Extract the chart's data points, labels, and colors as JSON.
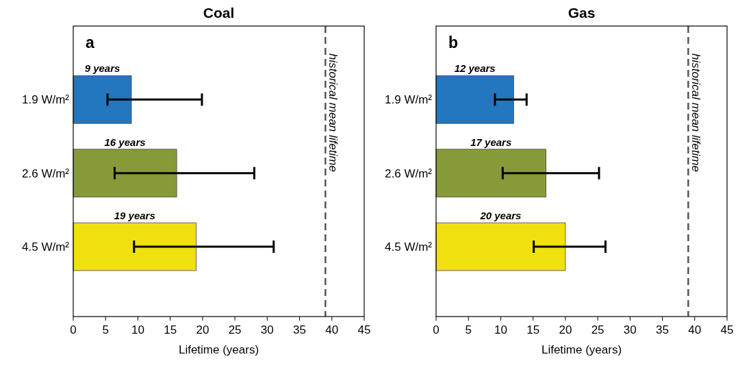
{
  "chart_data": [
    {
      "type": "bar",
      "orientation": "horizontal",
      "title": "Coal",
      "xlabel": "Lifetime (years)",
      "categories": [
        "1.9 W/m²",
        "2.6 W/m²",
        "4.5 W/m²"
      ],
      "values": [
        9,
        16,
        19
      ],
      "colors": [
        "#2277bf",
        "#879a3a",
        "#f0e010"
      ],
      "value_labels": [
        "9 years",
        "16 years",
        "19 years"
      ],
      "errors": [
        [
          5.3,
          19.9
        ],
        [
          6.4,
          28
        ],
        [
          9.4,
          31
        ]
      ],
      "xlim": [
        0,
        45
      ],
      "xticks": [
        0,
        5,
        10,
        15,
        20,
        25,
        30,
        35,
        40,
        45
      ],
      "ref_lines": [
        {
          "axis": "x",
          "value": 39,
          "label": "historical mean lifetime",
          "color": "#555555",
          "line_style": "dashed"
        }
      ],
      "annotations": [
        "a"
      ]
    },
    {
      "type": "bar",
      "orientation": "horizontal",
      "title": "Gas",
      "xlabel": "Lifetime (years)",
      "categories": [
        "1.9 W/m²",
        "2.6 W/m²",
        "4.5 W/m²"
      ],
      "values": [
        12,
        17,
        20
      ],
      "colors": [
        "#2277bf",
        "#879a3a",
        "#f0e010"
      ],
      "value_labels": [
        "12 years",
        "17 years",
        "20 years"
      ],
      "errors": [
        [
          9.1,
          14
        ],
        [
          10.3,
          25.2
        ],
        [
          15.1,
          26.2
        ]
      ],
      "xlim": [
        0,
        45
      ],
      "xticks": [
        0,
        5,
        10,
        15,
        20,
        25,
        30,
        35,
        40,
        45
      ],
      "ref_lines": [
        {
          "axis": "x",
          "value": 39,
          "label": "historical mean lifetime",
          "color": "#555555",
          "line_style": "dashed"
        }
      ],
      "annotations": [
        "b"
      ]
    }
  ]
}
